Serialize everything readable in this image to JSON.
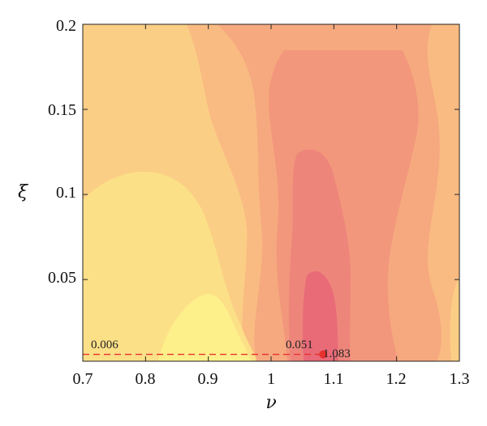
{
  "chart_data": {
    "type": "heatmap",
    "xlabel": "ν",
    "ylabel": "ξ",
    "xlim": [
      0.7,
      1.3
    ],
    "ylim": [
      0.002,
      0.2
    ],
    "x_ticks": [
      "0.7",
      "0.8",
      "0.9",
      "1",
      "1.1",
      "1.2",
      "1.3"
    ],
    "y_ticks": [
      "0.05",
      "0.1",
      "0.15",
      "0.2"
    ],
    "grid": false,
    "colormap": [
      "#fdf08a",
      "#fce087",
      "#fbce85",
      "#f9bb82",
      "#f6a97e",
      "#f2977c",
      "#ee857b",
      "#e96b78"
    ],
    "annotations": {
      "left_value": "0.006",
      "mid_value": "0.051",
      "point_label": "1.083"
    },
    "marker": {
      "x": 1.083,
      "y": 0.006,
      "color": "#e8302f"
    },
    "dashed_line": {
      "x_from": 0.7,
      "x_to": 1.083,
      "y": 0.006,
      "color": "#e8302f"
    }
  }
}
